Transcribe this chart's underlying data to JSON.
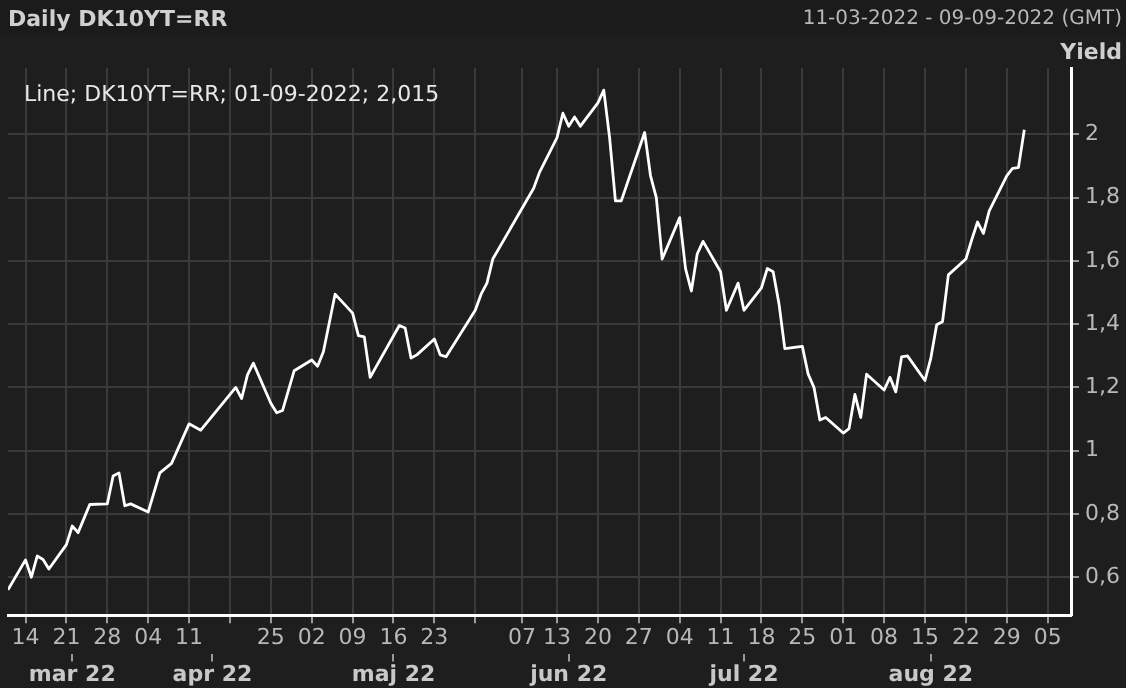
{
  "chart_data": {
    "type": "line",
    "title": "Daily DK10YT=RR",
    "subtitle": "11-03-2022 - 09-09-2022 (GMT)",
    "ylabel": "Yield",
    "annotations": [
      "Line; DK10YT=RR; 01-09-2022; 2,015"
    ],
    "x": [
      "2022-03-11",
      "2022-03-14",
      "2022-03-15",
      "2022-03-16",
      "2022-03-17",
      "2022-03-18",
      "2022-03-21",
      "2022-03-22",
      "2022-03-23",
      "2022-03-25",
      "2022-03-28",
      "2022-03-29",
      "2022-03-30",
      "2022-03-31",
      "2022-04-01",
      "2022-04-04",
      "2022-04-06",
      "2022-04-08",
      "2022-04-11",
      "2022-04-13",
      "2022-04-19",
      "2022-04-20",
      "2022-04-21",
      "2022-04-22",
      "2022-04-25",
      "2022-04-26",
      "2022-04-27",
      "2022-04-29",
      "2022-05-02",
      "2022-05-03",
      "2022-05-04",
      "2022-05-06",
      "2022-05-09",
      "2022-05-10",
      "2022-05-11",
      "2022-05-12",
      "2022-05-17",
      "2022-05-18",
      "2022-05-19",
      "2022-05-20",
      "2022-05-23",
      "2022-05-24",
      "2022-05-25",
      "2022-05-30",
      "2022-05-31",
      "2022-06-01",
      "2022-06-02",
      "2022-06-09",
      "2022-06-10",
      "2022-06-13",
      "2022-06-14",
      "2022-06-15",
      "2022-06-16",
      "2022-06-17",
      "2022-06-20",
      "2022-06-21",
      "2022-06-22",
      "2022-06-23",
      "2022-06-24",
      "2022-06-28",
      "2022-06-29",
      "2022-06-30",
      "2022-07-01",
      "2022-07-04",
      "2022-07-05",
      "2022-07-06",
      "2022-07-07",
      "2022-07-08",
      "2022-07-11",
      "2022-07-12",
      "2022-07-14",
      "2022-07-15",
      "2022-07-18",
      "2022-07-19",
      "2022-07-20",
      "2022-07-21",
      "2022-07-22",
      "2022-07-25",
      "2022-07-26",
      "2022-07-27",
      "2022-07-28",
      "2022-07-29",
      "2022-08-01",
      "2022-08-02",
      "2022-08-03",
      "2022-08-04",
      "2022-08-05",
      "2022-08-08",
      "2022-08-09",
      "2022-08-10",
      "2022-08-11",
      "2022-08-12",
      "2022-08-15",
      "2022-08-16",
      "2022-08-17",
      "2022-08-18",
      "2022-08-19",
      "2022-08-22",
      "2022-08-23",
      "2022-08-24",
      "2022-08-25",
      "2022-08-26",
      "2022-08-29",
      "2022-08-30",
      "2022-08-31",
      "2022-09-01"
    ],
    "series": [
      {
        "color": "#ffffff",
        "values": [
          0.56,
          0.655,
          0.6,
          0.667,
          0.656,
          0.626,
          0.703,
          0.762,
          0.741,
          0.83,
          0.832,
          0.92,
          0.93,
          0.826,
          0.832,
          0.806,
          0.93,
          0.96,
          1.085,
          1.065,
          1.2,
          1.165,
          1.24,
          1.277,
          1.15,
          1.12,
          1.127,
          1.253,
          1.287,
          1.267,
          1.313,
          1.495,
          1.435,
          1.364,
          1.36,
          1.232,
          1.396,
          1.388,
          1.293,
          1.303,
          1.353,
          1.303,
          1.297,
          1.444,
          1.495,
          1.53,
          1.606,
          1.83,
          1.88,
          1.99,
          2.067,
          2.026,
          2.055,
          2.026,
          2.1,
          2.14,
          1.99,
          1.79,
          1.79,
          2.006,
          1.87,
          1.8,
          1.606,
          1.737,
          1.576,
          1.505,
          1.622,
          1.662,
          1.566,
          1.444,
          1.53,
          1.444,
          1.515,
          1.576,
          1.566,
          1.465,
          1.323,
          1.33,
          1.242,
          1.2,
          1.097,
          1.105,
          1.056,
          1.07,
          1.178,
          1.105,
          1.242,
          1.192,
          1.232,
          1.186,
          1.297,
          1.3,
          1.222,
          1.293,
          1.398,
          1.408,
          1.556,
          1.606,
          1.667,
          1.723,
          1.687,
          1.758,
          1.869,
          1.893,
          1.895,
          2.015
        ]
      }
    ],
    "xlim": [
      "2022-03-11",
      "2022-09-09"
    ],
    "xticks": [
      {
        "value": "2022-03-14",
        "label": "14"
      },
      {
        "value": "2022-03-21",
        "label": "21"
      },
      {
        "value": "2022-03-28",
        "label": "28"
      },
      {
        "value": "2022-04-04",
        "label": "04"
      },
      {
        "value": "2022-04-11",
        "label": "11"
      },
      {
        "value": "2022-04-18",
        "label": null
      },
      {
        "value": "2022-04-25",
        "label": "25"
      },
      {
        "value": "2022-05-02",
        "label": "02"
      },
      {
        "value": "2022-05-09",
        "label": "09"
      },
      {
        "value": "2022-05-16",
        "label": "16"
      },
      {
        "value": "2022-05-23",
        "label": "23"
      },
      {
        "value": "2022-05-30",
        "label": null
      },
      {
        "value": "2022-06-07",
        "label": "07"
      },
      {
        "value": "2022-06-13",
        "label": "13"
      },
      {
        "value": "2022-06-20",
        "label": "20"
      },
      {
        "value": "2022-06-27",
        "label": "27"
      },
      {
        "value": "2022-07-04",
        "label": "04"
      },
      {
        "value": "2022-07-11",
        "label": "11"
      },
      {
        "value": "2022-07-18",
        "label": "18"
      },
      {
        "value": "2022-07-25",
        "label": "25"
      },
      {
        "value": "2022-08-01",
        "label": "01"
      },
      {
        "value": "2022-08-08",
        "label": "08"
      },
      {
        "value": "2022-08-15",
        "label": "15"
      },
      {
        "value": "2022-08-22",
        "label": "22"
      },
      {
        "value": "2022-08-29",
        "label": "29"
      },
      {
        "value": "2022-09-05",
        "label": "05"
      }
    ],
    "x2lim": [
      "2022-03-11",
      "2022-09-09"
    ],
    "x2ticks": [
      {
        "value": "2022-03-22",
        "label": "mar 22"
      },
      {
        "value": "2022-04-15",
        "label": "apr 22"
      },
      {
        "value": "2022-05-16",
        "label": "maj 22"
      },
      {
        "value": "2022-06-15",
        "label": "jun 22"
      },
      {
        "value": "2022-07-15",
        "label": "jul 22"
      },
      {
        "value": "2022-08-16",
        "label": "aug 22"
      }
    ],
    "ylim": [
      0.48,
      2.21
    ],
    "yticks": [
      {
        "value": 0.6,
        "label": "0,6"
      },
      {
        "value": 0.8,
        "label": "0,8"
      },
      {
        "value": 1,
        "label": "1"
      },
      {
        "value": 1.2,
        "label": "1,2"
      },
      {
        "value": 1.4,
        "label": "1,4"
      },
      {
        "value": 1.6,
        "label": "1,6"
      },
      {
        "value": 1.8,
        "label": "1,8"
      },
      {
        "value": 2,
        "label": "2"
      }
    ],
    "grid": true,
    "legend": false,
    "marker": "none",
    "line_style": "solid"
  }
}
